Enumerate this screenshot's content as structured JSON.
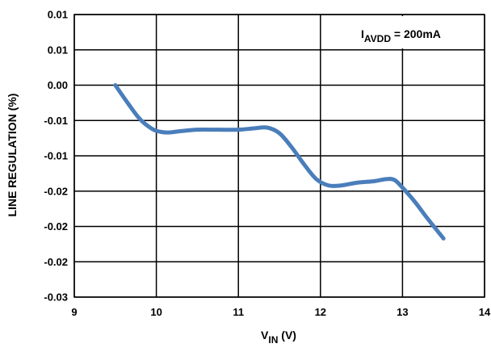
{
  "chart_data": {
    "type": "line",
    "title": "",
    "xlabel": {
      "main": "V",
      "sub": "IN",
      "rest": " (V)"
    },
    "ylabel": "LINE REGULATION (%)",
    "xlim": [
      9,
      14
    ],
    "ylim": [
      -0.03,
      0.01
    ],
    "x_ticks": [
      9,
      10,
      11,
      12,
      13,
      14
    ],
    "x_tick_labels": [
      "9",
      "10",
      "11",
      "12",
      "13",
      "14"
    ],
    "y_ticks": [
      0.01,
      0.005,
      0.0,
      -0.005,
      -0.01,
      -0.015,
      -0.02,
      -0.025,
      -0.03
    ],
    "y_tick_labels": [
      "0.01",
      "0.01",
      "0.00",
      "-0.01",
      "-0.01",
      "-0.02",
      "-0.02",
      "-0.02",
      "-0.03"
    ],
    "grid": true,
    "annotation": {
      "main": "I",
      "sub": "AVDD",
      "rest": " = 200mA"
    },
    "series": [
      {
        "color": "#4a7ebb",
        "x": [
          9.5,
          9.65,
          9.8,
          9.95,
          10.05,
          10.15,
          10.3,
          10.5,
          10.75,
          11.0,
          11.2,
          11.35,
          11.5,
          11.65,
          11.8,
          11.95,
          12.1,
          12.25,
          12.45,
          12.65,
          12.8,
          12.9,
          13.0,
          13.15,
          13.3,
          13.5
        ],
        "y": [
          0.0,
          -0.0025,
          -0.0048,
          -0.0062,
          -0.0066,
          -0.0067,
          -0.0065,
          -0.0063,
          -0.0063,
          -0.0063,
          -0.0061,
          -0.006,
          -0.0068,
          -0.0088,
          -0.0112,
          -0.0133,
          -0.0142,
          -0.0142,
          -0.0138,
          -0.0136,
          -0.0133,
          -0.0134,
          -0.0145,
          -0.0165,
          -0.0188,
          -0.0217
        ]
      }
    ]
  }
}
